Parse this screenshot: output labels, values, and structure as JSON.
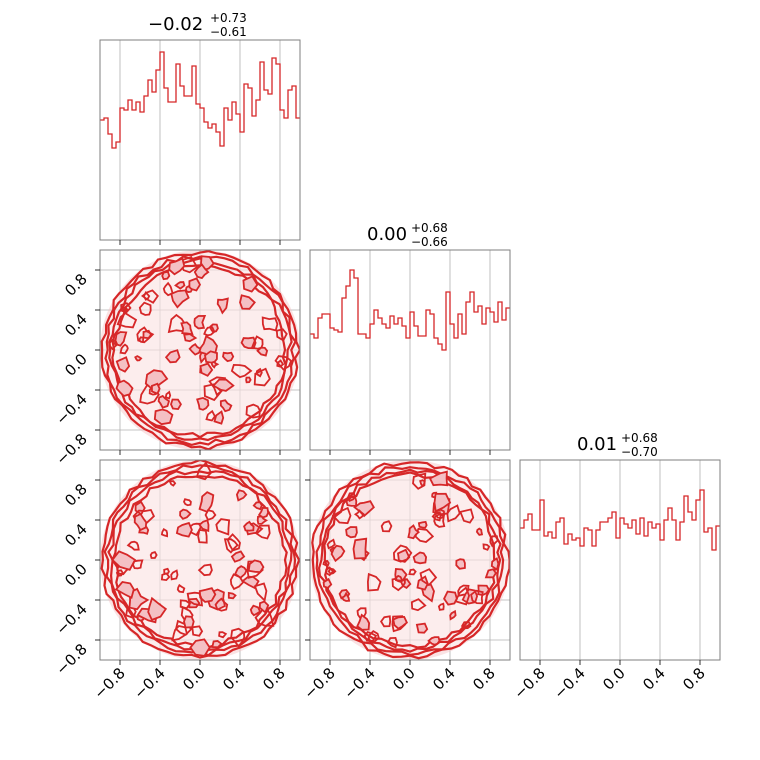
{
  "chart_data": {
    "type": "corner",
    "color": "#d62728",
    "fill_color": "#f4c0c4",
    "tick_labels": [
      "−0.8",
      "−0.4",
      "0.0",
      "0.4",
      "0.8"
    ],
    "tick_values": [
      -0.8,
      -0.4,
      0.0,
      0.4,
      0.8
    ],
    "range": [
      -1.0,
      1.0
    ],
    "grid": true,
    "titles": [
      {
        "main": "−0.02",
        "upper": "+0.73",
        "lower": "−0.61"
      },
      {
        "main": "0.00",
        "upper": "+0.68",
        "lower": "−0.66"
      },
      {
        "main": "0.01",
        "upper": "+0.68",
        "lower": "−0.70"
      }
    ],
    "histograms": [
      {
        "name": "p0",
        "values": [
          0.6,
          0.61,
          0.53,
          0.46,
          0.49,
          0.66,
          0.65,
          0.7,
          0.65,
          0.69,
          0.64,
          0.72,
          0.8,
          0.74,
          0.85,
          0.94,
          0.76,
          0.69,
          0.69,
          0.88,
          0.77,
          0.72,
          0.72,
          0.87,
          0.68,
          0.66,
          0.59,
          0.56,
          0.58,
          0.54,
          0.47,
          0.66,
          0.6,
          0.69,
          0.63,
          0.54,
          0.78,
          0.76,
          0.62,
          0.7,
          0.89,
          0.75,
          0.73,
          0.91,
          0.88,
          0.65,
          0.61,
          0.75,
          0.77,
          0.61
        ]
      },
      {
        "name": "p1",
        "values": [
          0.58,
          0.56,
          0.66,
          0.68,
          0.68,
          0.61,
          0.6,
          0.59,
          0.76,
          0.82,
          0.9,
          0.86,
          0.58,
          0.58,
          0.56,
          0.63,
          0.7,
          0.66,
          0.63,
          0.61,
          0.67,
          0.63,
          0.66,
          0.62,
          0.56,
          0.69,
          0.62,
          0.57,
          0.57,
          0.7,
          0.68,
          0.56,
          0.53,
          0.5,
          0.79,
          0.63,
          0.56,
          0.68,
          0.58,
          0.74,
          0.79,
          0.69,
          0.72,
          0.63,
          0.71,
          0.69,
          0.64,
          0.74,
          0.65,
          0.71
        ]
      },
      {
        "name": "p2",
        "values": [
          0.66,
          0.7,
          0.73,
          0.65,
          0.65,
          0.8,
          0.62,
          0.64,
          0.61,
          0.69,
          0.71,
          0.58,
          0.63,
          0.6,
          0.61,
          0.57,
          0.66,
          0.65,
          0.57,
          0.65,
          0.69,
          0.69,
          0.71,
          0.74,
          0.61,
          0.71,
          0.68,
          0.66,
          0.7,
          0.63,
          0.71,
          0.62,
          0.69,
          0.66,
          0.68,
          0.6,
          0.7,
          0.76,
          0.7,
          0.6,
          0.69,
          0.82,
          0.74,
          0.7,
          0.8,
          0.85,
          0.64,
          0.66,
          0.55,
          0.67
        ]
      }
    ],
    "contour_panels": [
      {
        "row": 1,
        "col": 0,
        "shape": "filled disk of radius 1"
      },
      {
        "row": 2,
        "col": 0,
        "shape": "filled disk of radius 1"
      },
      {
        "row": 2,
        "col": 1,
        "shape": "filled disk of radius 1"
      }
    ]
  }
}
